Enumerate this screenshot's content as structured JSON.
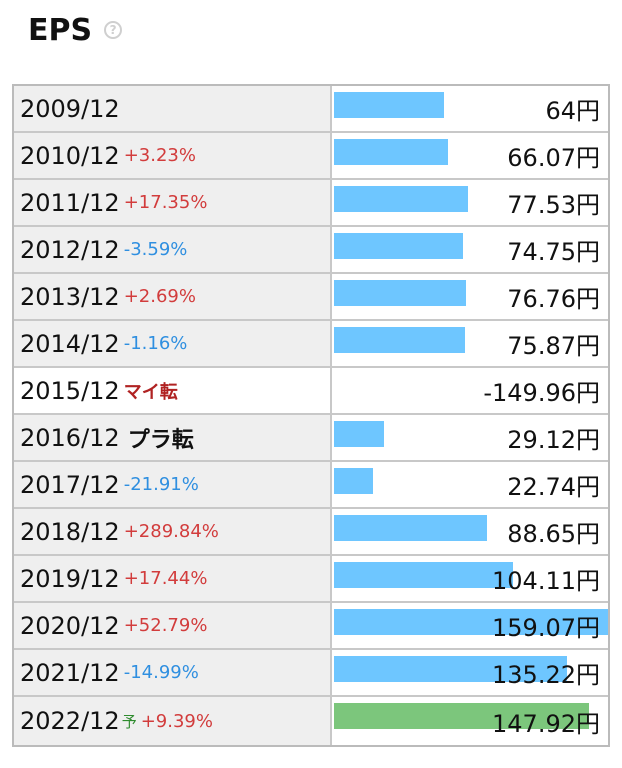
{
  "header": {
    "title": "EPS",
    "help_glyph": "?"
  },
  "colors": {
    "bar_actual": "#6ec6ff",
    "bar_forecast": "#7cc67c",
    "change_up": "#d23c3c",
    "change_down": "#2f8fe0"
  },
  "chart_data": {
    "type": "bar",
    "title": "EPS",
    "unit": "円",
    "categories": [
      "2009/12",
      "2010/12",
      "2011/12",
      "2012/12",
      "2013/12",
      "2014/12",
      "2015/12",
      "2016/12",
      "2017/12",
      "2018/12",
      "2019/12",
      "2020/12",
      "2021/12",
      "2022/12"
    ],
    "values": [
      64,
      66.07,
      77.53,
      74.75,
      76.76,
      75.87,
      -149.96,
      29.12,
      22.74,
      88.65,
      104.11,
      159.07,
      135.22,
      147.92
    ],
    "rows": [
      {
        "year": "2009/12",
        "pred": "",
        "change": "",
        "change_type": "",
        "value": 64,
        "value_label": "64円",
        "forecast": false
      },
      {
        "year": "2010/12",
        "pred": "",
        "change": "+3.23%",
        "change_type": "up",
        "value": 66.07,
        "value_label": "66.07円",
        "forecast": false
      },
      {
        "year": "2011/12",
        "pred": "",
        "change": "+17.35%",
        "change_type": "up",
        "value": 77.53,
        "value_label": "77.53円",
        "forecast": false
      },
      {
        "year": "2012/12",
        "pred": "",
        "change": "-3.59%",
        "change_type": "down",
        "value": 74.75,
        "value_label": "74.75円",
        "forecast": false
      },
      {
        "year": "2013/12",
        "pred": "",
        "change": "+2.69%",
        "change_type": "up",
        "value": 76.76,
        "value_label": "76.76円",
        "forecast": false
      },
      {
        "year": "2014/12",
        "pred": "",
        "change": "-1.16%",
        "change_type": "down",
        "value": 75.87,
        "value_label": "75.87円",
        "forecast": false
      },
      {
        "year": "2015/12",
        "pred": "",
        "change": "マイ転",
        "change_type": "minus-turn",
        "value": -149.96,
        "value_label": "-149.96円",
        "forecast": false
      },
      {
        "year": "2016/12",
        "pred": "",
        "change": "プラ転",
        "change_type": "plus-turn",
        "value": 29.12,
        "value_label": "29.12円",
        "forecast": false
      },
      {
        "year": "2017/12",
        "pred": "",
        "change": "-21.91%",
        "change_type": "down",
        "value": 22.74,
        "value_label": "22.74円",
        "forecast": false
      },
      {
        "year": "2018/12",
        "pred": "",
        "change": "+289.84%",
        "change_type": "up",
        "value": 88.65,
        "value_label": "88.65円",
        "forecast": false
      },
      {
        "year": "2019/12",
        "pred": "",
        "change": "+17.44%",
        "change_type": "up",
        "value": 104.11,
        "value_label": "104.11円",
        "forecast": false
      },
      {
        "year": "2020/12",
        "pred": "",
        "change": "+52.79%",
        "change_type": "up",
        "value": 159.07,
        "value_label": "159.07円",
        "forecast": false
      },
      {
        "year": "2021/12",
        "pred": "",
        "change": "-14.99%",
        "change_type": "down",
        "value": 135.22,
        "value_label": "135.22円",
        "forecast": false
      },
      {
        "year": "2022/12",
        "pred": "予",
        "change": "+9.39%",
        "change_type": "up",
        "value": 147.92,
        "value_label": "147.92円",
        "forecast": true
      }
    ]
  }
}
